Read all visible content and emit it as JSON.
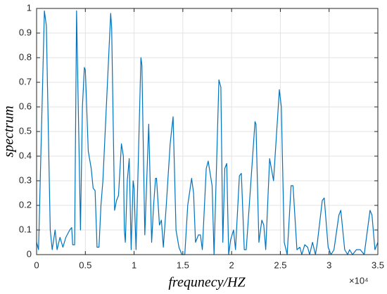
{
  "chart_data": {
    "type": "line",
    "x_label": "frequnecy/HZ",
    "y_label": "spectrum",
    "x_exponent_label": "×10⁴",
    "color": "#0072bd",
    "grid": true,
    "xlim": [
      0,
      3.5
    ],
    "xticks": [
      0,
      0.5,
      1,
      1.5,
      2,
      2.5,
      3,
      3.5
    ],
    "ylim": [
      0,
      1
    ],
    "yticks": [
      0,
      0.1,
      0.2,
      0.3,
      0.4,
      0.5,
      0.6,
      0.7,
      0.8,
      0.9,
      1
    ],
    "x": [
      0,
      0.02,
      0.08,
      0.1,
      0.14,
      0.16,
      0.19,
      0.21,
      0.24,
      0.27,
      0.3,
      0.34,
      0.36,
      0.37,
      0.39,
      0.41,
      0.45,
      0.47,
      0.49,
      0.5,
      0.53,
      0.56,
      0.58,
      0.6,
      0.62,
      0.64,
      0.66,
      0.68,
      0.76,
      0.77,
      0.8,
      0.82,
      0.84,
      0.87,
      0.89,
      0.9,
      0.91,
      0.93,
      0.95,
      0.97,
      0.99,
      1.0,
      1.02,
      1.07,
      1.08,
      1.11,
      1.15,
      1.18,
      1.2,
      1.22,
      1.23,
      1.26,
      1.28,
      1.3,
      1.33,
      1.37,
      1.4,
      1.43,
      1.46,
      1.49,
      1.52,
      1.55,
      1.59,
      1.61,
      1.63,
      1.66,
      1.68,
      1.7,
      1.74,
      1.76,
      1.8,
      1.82,
      1.87,
      1.89,
      1.91,
      1.93,
      1.95,
      1.97,
      1.99,
      2.02,
      2.04,
      2.08,
      2.1,
      2.13,
      2.15,
      2.19,
      2.24,
      2.25,
      2.28,
      2.31,
      2.33,
      2.35,
      2.39,
      2.43,
      2.49,
      2.51,
      2.54,
      2.57,
      2.61,
      2.63,
      2.67,
      2.7,
      2.72,
      2.75,
      2.78,
      2.8,
      2.83,
      2.86,
      2.88,
      2.93,
      2.95,
      2.99,
      3.02,
      3.05,
      3.1,
      3.12,
      3.16,
      3.19,
      3.21,
      3.24,
      3.28,
      3.32,
      3.36,
      3.42,
      3.44,
      3.47,
      3.5
    ],
    "values": [
      0.05,
      0.02,
      0.99,
      0.93,
      0.1,
      0.02,
      0.1,
      0.02,
      0.07,
      0.03,
      0.07,
      0.1,
      0.11,
      0.04,
      0.04,
      0.99,
      0.1,
      0.6,
      0.76,
      0.75,
      0.42,
      0.35,
      0.27,
      0.26,
      0.03,
      0.03,
      0.2,
      0.3,
      0.98,
      0.92,
      0.18,
      0.22,
      0.24,
      0.45,
      0.4,
      0.1,
      0.05,
      0.3,
      0.39,
      0.02,
      0.3,
      0.27,
      0.02,
      0.8,
      0.77,
      0.08,
      0.53,
      0.05,
      0.2,
      0.31,
      0.31,
      0.12,
      0.14,
      0.03,
      0.2,
      0.45,
      0.56,
      0.1,
      0.03,
      0,
      0,
      0.2,
      0.31,
      0.25,
      0.05,
      0.08,
      0.08,
      0.02,
      0.35,
      0.38,
      0.28,
      0,
      0.71,
      0.68,
      0.05,
      0.35,
      0.37,
      0,
      0.06,
      0.1,
      0.02,
      0.32,
      0.33,
      0.02,
      0.02,
      0.25,
      0.54,
      0.53,
      0.05,
      0.14,
      0.12,
      0.02,
      0.39,
      0.3,
      0.67,
      0.6,
      0.05,
      0,
      0.28,
      0.28,
      0.02,
      0.03,
      0,
      0.04,
      0.03,
      0,
      0.05,
      0,
      0.05,
      0.22,
      0.23,
      0.03,
      0,
      0.02,
      0.16,
      0.18,
      0.02,
      0,
      0.02,
      0,
      0.02,
      0.02,
      0,
      0.18,
      0.16,
      0.02,
      0.05
    ]
  }
}
